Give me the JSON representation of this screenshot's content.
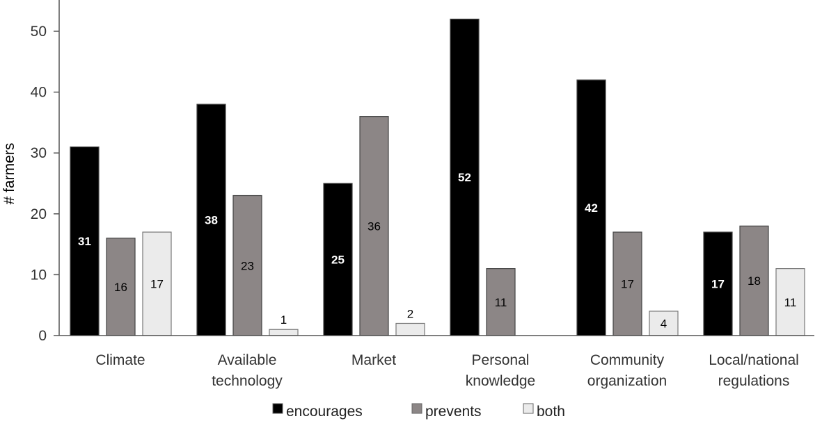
{
  "chart_data": {
    "type": "bar",
    "ylabel": "# farmers",
    "xlabel": "",
    "ylim": [
      0,
      55
    ],
    "yticks": [
      0,
      10,
      20,
      30,
      40,
      50
    ],
    "grid": false,
    "legend_position": "bottom",
    "categories": [
      [
        "Climate"
      ],
      [
        "Available",
        "technology"
      ],
      [
        "Market"
      ],
      [
        "Personal",
        "knowledge"
      ],
      [
        "Community",
        "organization"
      ],
      [
        "Local/national",
        "regulations"
      ]
    ],
    "series": [
      {
        "name": "encourages",
        "color": "#000000",
        "label_color": "#ffffff",
        "values": [
          31,
          38,
          25,
          52,
          42,
          17
        ]
      },
      {
        "name": "prevents",
        "color": "#8c8686",
        "label_color": "#000000",
        "values": [
          16,
          23,
          36,
          11,
          17,
          18
        ]
      },
      {
        "name": "both",
        "color": "#ebebeb",
        "label_color": "#000000",
        "values": [
          17,
          1,
          2,
          0,
          4,
          11
        ]
      }
    ],
    "data_labels": [
      [
        "31",
        "38",
        "25",
        "52",
        "42",
        "17"
      ],
      [
        "16",
        "23",
        "36",
        "11",
        "17",
        "18"
      ],
      [
        "17",
        "1",
        "2",
        "",
        "4",
        "11"
      ]
    ]
  }
}
